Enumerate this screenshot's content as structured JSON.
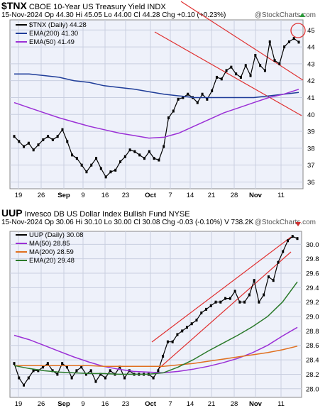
{
  "charts": [
    {
      "symbol": "$TNX",
      "title": "CBOE 10-Year US Treasury Yield",
      "exchange": "INDX",
      "date": "15-Nov-2024",
      "ohlc": "Op 44.30 Hi 45.05 Lo 44.00 Cl 44.28 Chg +0.10 (+0.23%)",
      "legend": [
        {
          "label": "$TNX (Daily) 44.28",
          "color": "#000000"
        },
        {
          "label": "EMA(200) 41.30",
          "color": "#1f3d99"
        },
        {
          "label": "EMA(50) 41.49",
          "color": "#9b30d6"
        }
      ]
    },
    {
      "symbol": "UUP",
      "title": "Invesco DB US Dollar Index Bullish Fund",
      "exchange": "NYSE",
      "date": "15-Nov-2024",
      "ohlc": "Op 30.06 Hi 30.10 Lo 30.00 Cl 30.08 Chg -0.03 (-0.10%)",
      "volume": "V 738.2K",
      "legend": [
        {
          "label": "UUP (Daily) 30.08",
          "color": "#000000"
        },
        {
          "label": "MA(50) 28.85",
          "color": "#9b30d6"
        },
        {
          "label": "MA(200) 28.59",
          "color": "#e07020"
        },
        {
          "label": "EMA(20) 29.48",
          "color": "#2b7a2b"
        }
      ]
    }
  ],
  "watermark": "@StockCharts.com",
  "chart_data": [
    {
      "type": "line",
      "title": "$TNX CBOE 10-Year US Treasury Yield INDX",
      "x_tick_labels": [
        "19",
        "26",
        "Sep",
        "9",
        "16",
        "23",
        "Oct",
        "7",
        "14",
        "21",
        "28",
        "Nov",
        "11"
      ],
      "y_ticks": [
        36,
        37,
        38,
        39,
        40,
        41,
        42,
        43,
        44,
        45
      ],
      "ylim": [
        35.6,
        45.6
      ],
      "series": [
        {
          "name": "$TNX (Daily)",
          "color": "#000000",
          "values": [
            38.7,
            38.4,
            38.1,
            38.3,
            37.9,
            38.2,
            38.5,
            38.7,
            38.5,
            38.7,
            39.1,
            38.4,
            37.6,
            37.4,
            37.0,
            36.6,
            37.0,
            37.4,
            36.8,
            36.3,
            36.6,
            36.7,
            37.2,
            37.5,
            37.9,
            37.8,
            37.6,
            37.4,
            37.8,
            37.4,
            37.3,
            38.1,
            39.8,
            40.2,
            40.9,
            41.0,
            41.2,
            41.0,
            40.7,
            41.2,
            40.9,
            41.4,
            42.2,
            42.1,
            42.6,
            42.8,
            42.4,
            42.2,
            42.9,
            42.3,
            43.5,
            42.9,
            42.6,
            44.3,
            43.2,
            43.0,
            44.0,
            44.3,
            44.5,
            44.28
          ]
        },
        {
          "name": "EMA(200)",
          "color": "#1f3d99",
          "values": [
            42.4,
            42.4,
            42.3,
            42.2,
            42.0,
            41.9,
            41.7,
            41.6,
            41.5,
            41.35,
            41.2,
            41.1,
            41.0,
            41.0,
            41.0,
            41.0,
            41.0,
            41.1,
            41.2,
            41.3
          ]
        },
        {
          "name": "EMA(50)",
          "color": "#9b30d6",
          "values": [
            40.7,
            40.4,
            40.1,
            39.8,
            39.55,
            39.3,
            39.1,
            38.9,
            38.75,
            38.6,
            38.65,
            38.9,
            39.3,
            39.7,
            40.1,
            40.4,
            40.7,
            41.0,
            41.2,
            41.49
          ]
        }
      ]
    },
    {
      "type": "line",
      "title": "UUP Invesco DB US Dollar Index Bullish Fund NYSE",
      "x_tick_labels": [
        "19",
        "26",
        "Sep",
        "9",
        "16",
        "23",
        "Oct",
        "7",
        "14",
        "21",
        "28",
        "Nov",
        "11"
      ],
      "y_ticks": [
        28.0,
        28.2,
        28.4,
        28.6,
        28.8,
        29.0,
        29.2,
        29.4,
        29.6,
        29.8,
        30.0
      ],
      "ylim": [
        27.88,
        30.18
      ],
      "series": [
        {
          "name": "UUP (Daily)",
          "color": "#000000",
          "values": [
            28.35,
            28.15,
            28.05,
            28.15,
            28.25,
            28.25,
            28.3,
            28.35,
            28.25,
            28.2,
            28.35,
            28.3,
            28.15,
            28.25,
            28.3,
            28.2,
            28.25,
            28.1,
            28.2,
            28.15,
            28.25,
            28.2,
            28.3,
            28.15,
            28.25,
            28.2,
            28.2,
            28.2,
            28.2,
            28.15,
            28.25,
            28.45,
            28.65,
            28.65,
            28.75,
            28.8,
            28.85,
            28.9,
            28.95,
            29.05,
            29.1,
            29.15,
            29.2,
            29.2,
            29.25,
            29.25,
            29.35,
            29.2,
            29.2,
            29.3,
            29.5,
            29.2,
            29.3,
            29.55,
            29.5,
            29.75,
            29.9,
            30.05,
            30.11,
            30.08
          ]
        },
        {
          "name": "MA(50)",
          "color": "#9b30d6",
          "values": [
            28.74,
            28.68,
            28.6,
            28.52,
            28.44,
            28.37,
            28.31,
            28.27,
            28.24,
            28.23,
            28.22,
            28.24,
            28.27,
            28.31,
            28.36,
            28.42,
            28.5,
            28.6,
            28.73,
            28.85
          ]
        },
        {
          "name": "MA(200)",
          "color": "#e07020",
          "values": [
            28.32,
            28.32,
            28.32,
            28.32,
            28.32,
            28.32,
            28.31,
            28.31,
            28.31,
            28.31,
            28.31,
            28.33,
            28.35,
            28.38,
            28.41,
            28.44,
            28.47,
            28.5,
            28.54,
            28.59
          ]
        },
        {
          "name": "EMA(20)",
          "color": "#2b7a2b",
          "values": [
            28.32,
            28.28,
            28.25,
            28.23,
            28.22,
            28.21,
            28.21,
            28.2,
            28.2,
            28.2,
            28.22,
            28.3,
            28.4,
            28.52,
            28.63,
            28.74,
            28.86,
            29.0,
            29.2,
            29.48
          ]
        }
      ]
    }
  ]
}
